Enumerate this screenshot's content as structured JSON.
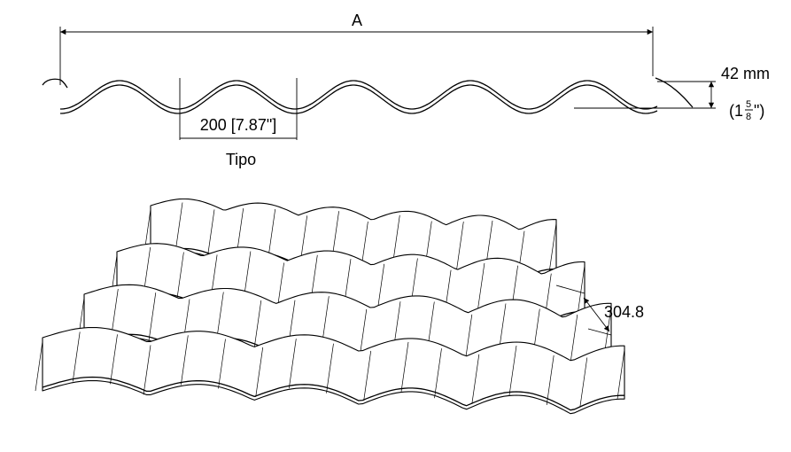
{
  "profile": {
    "overall_width_label": "A",
    "height_label": "42 mm",
    "height_imperial_open": "(1",
    "height_imperial_num": "5",
    "height_imperial_den": "8",
    "height_imperial_close": "\")",
    "pitch_label": "200 [7.87\"]",
    "type_label": "Tipo"
  },
  "perspective": {
    "step_label": "304.8"
  },
  "colors": {
    "line": "#000000",
    "background": "#ffffff"
  }
}
